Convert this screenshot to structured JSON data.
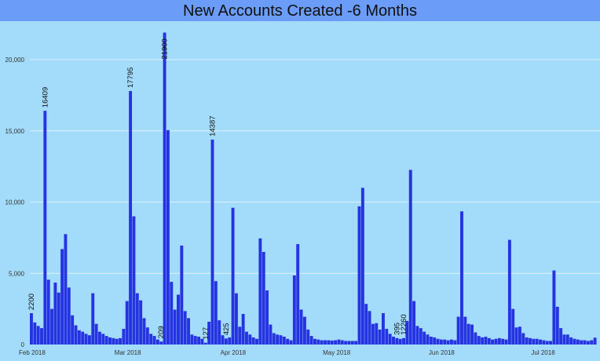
{
  "title": "New Accounts Created -6 Months",
  "colors": {
    "background": "#a3dcfa",
    "title_bar": "#6b9cf7",
    "bar": "#2633e0",
    "grid": "#ffffff"
  },
  "chart_data": {
    "type": "bar",
    "title": "New Accounts Created -6 Months",
    "xlabel": "",
    "ylabel": "",
    "ylim": [
      0,
      22000
    ],
    "grid": true,
    "yticks": [
      0,
      5000,
      10000,
      15000,
      20000
    ],
    "ytick_labels": [
      "0",
      "5,000",
      "10,000",
      "15,000",
      "20,000"
    ],
    "xtick_labels": [
      {
        "label": "Feb 2018",
        "index": 0
      },
      {
        "label": "Mar 2018",
        "index": 28
      },
      {
        "label": "Apr 2018",
        "index": 59
      },
      {
        "label": "May 2018",
        "index": 89
      },
      {
        "label": "Jun 2018",
        "index": 120
      },
      {
        "label": "Jul 2018",
        "index": 150
      }
    ],
    "values": [
      2200,
      1550,
      1300,
      1150,
      16409,
      4550,
      2500,
      4350,
      3650,
      6700,
      7750,
      4000,
      2050,
      1350,
      1000,
      900,
      750,
      650,
      3600,
      1450,
      900,
      750,
      600,
      500,
      450,
      400,
      450,
      1100,
      3050,
      17795,
      9000,
      3600,
      3100,
      1850,
      1200,
      750,
      600,
      350,
      209,
      21900,
      15050,
      4400,
      2450,
      3500,
      6950,
      2350,
      1850,
      700,
      600,
      550,
      400,
      127,
      1600,
      14387,
      4450,
      1700,
      650,
      425,
      500,
      9600,
      3600,
      1250,
      2150,
      900,
      700,
      500,
      400,
      7450,
      6500,
      3800,
      1400,
      800,
      700,
      650,
      550,
      400,
      300,
      4850,
      7050,
      2450,
      1950,
      1050,
      600,
      400,
      350,
      300,
      300,
      300,
      280,
      300,
      350,
      300,
      250,
      250,
      250,
      250,
      9700,
      11000,
      2850,
      2350,
      1450,
      1500,
      1050,
      2200,
      1100,
      750,
      550,
      450,
      395,
      450,
      1650,
      12260,
      3050,
      1300,
      1150,
      900,
      700,
      550,
      500,
      400,
      350,
      350,
      300,
      350,
      300,
      1950,
      9350,
      1950,
      1450,
      1400,
      850,
      600,
      500,
      550,
      450,
      350,
      400,
      450,
      400,
      350,
      7350,
      2500,
      1200,
      1250,
      800,
      500,
      450,
      400,
      400,
      350,
      300,
      250,
      250,
      5200,
      2650,
      1150,
      700,
      700,
      500,
      400,
      350,
      300,
      300,
      250,
      300,
      480
    ],
    "data_labels": [
      {
        "index": 0,
        "text": "2200"
      },
      {
        "index": 4,
        "text": "16409"
      },
      {
        "index": 29,
        "text": "17795"
      },
      {
        "index": 38,
        "text": "209"
      },
      {
        "index": 39,
        "text": "21900"
      },
      {
        "index": 51,
        "text": "127"
      },
      {
        "index": 53,
        "text": "14387"
      },
      {
        "index": 57,
        "text": "425"
      },
      {
        "index": 107,
        "text": "395"
      },
      {
        "index": 109,
        "text": "12260"
      },
      {
        "index": 167,
        "text": "480"
      }
    ]
  }
}
